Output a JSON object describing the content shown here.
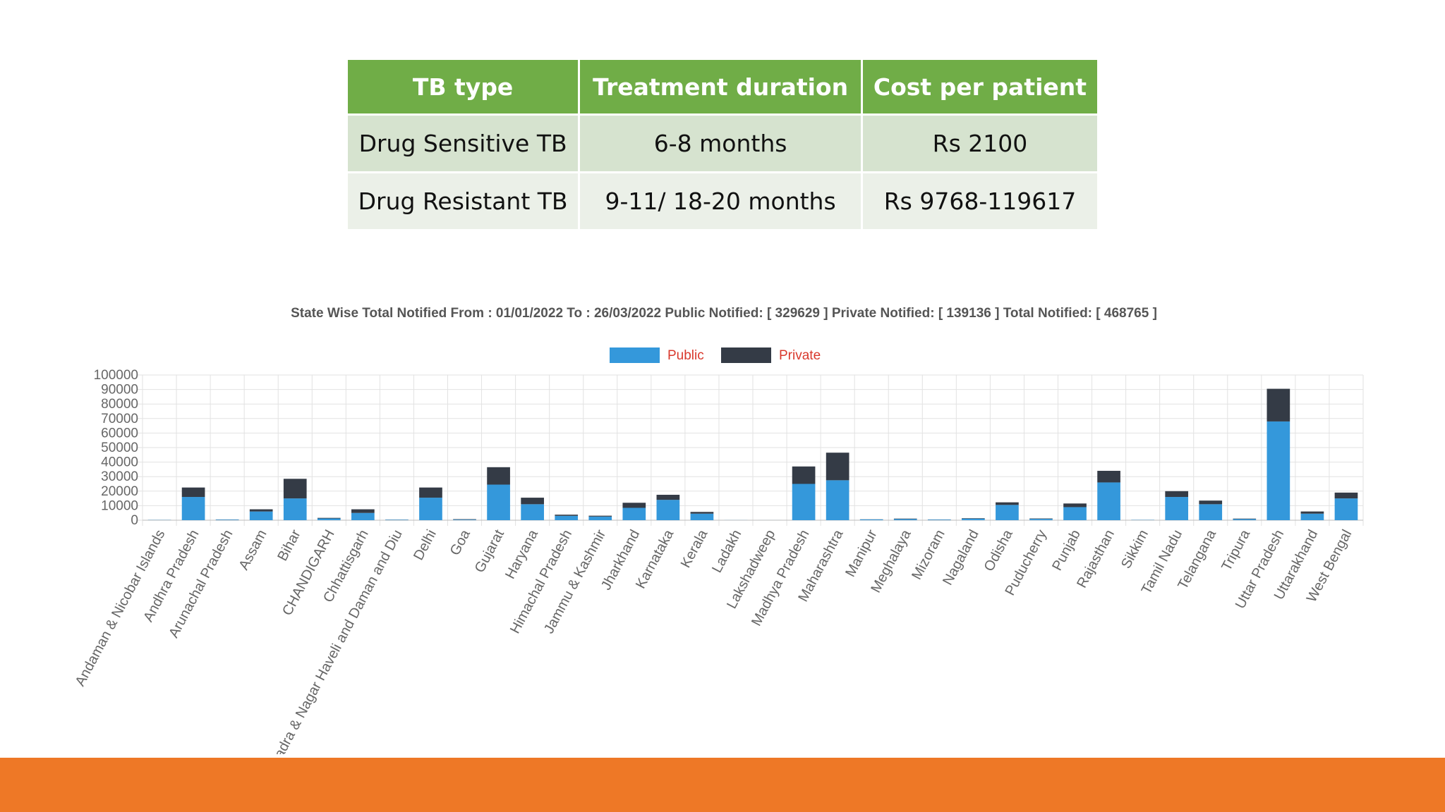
{
  "colors": {
    "table_header": "#70AD47",
    "row_odd": "#D6E3CF",
    "row_even": "#EBF0E8",
    "public": "#3498DB",
    "private": "#343B46",
    "legend_text": "#D9382C",
    "footer": "#EE7826",
    "axis_text": "#666666",
    "grid": "#E2E2E2"
  },
  "table": {
    "headers": [
      "TB type",
      "Treatment duration",
      "Cost per patient"
    ],
    "rows": [
      [
        "Drug Sensitive TB",
        "6-8 months",
        "Rs 2100"
      ],
      [
        "Drug Resistant TB",
        "9-11/ 18-20 months",
        "Rs 9768-119617"
      ]
    ]
  },
  "chart_data": {
    "type": "bar",
    "stacked": true,
    "title": "State Wise Total Notified From : 01/01/2022 To : 26/03/2022 Public Notified: [ 329629 ] Private Notified: [ 139136 ] Total Notified: [ 468765 ]",
    "legend": [
      "Public",
      "Private"
    ],
    "legend_position": "top-center",
    "ylim": [
      0,
      100000
    ],
    "yticks": [
      0,
      10000,
      20000,
      30000,
      40000,
      50000,
      60000,
      70000,
      80000,
      90000,
      100000
    ],
    "grid": true,
    "categories": [
      "Andaman & Nicobar Islands",
      "Andhra Pradesh",
      "Arunachal Pradesh",
      "Assam",
      "Bihar",
      "CHANDIGARH",
      "Chhattisgarh",
      "Dadra & Nagar Haveli and Daman and Diu",
      "Delhi",
      "Goa",
      "Gujarat",
      "Haryana",
      "Himachal Pradesh",
      "Jammu & Kashmir",
      "Jharkhand",
      "Karnataka",
      "Kerala",
      "Ladakh",
      "Lakshadweep",
      "Madhya Pradesh",
      "Maharashtra",
      "Manipur",
      "Meghalaya",
      "Mizoram",
      "Nagaland",
      "Odisha",
      "Puducherry",
      "Punjab",
      "Rajasthan",
      "Sikkim",
      "Tamil Nadu",
      "Telangana",
      "Tripura",
      "Uttar Pradesh",
      "Uttarakhand",
      "West Bengal"
    ],
    "series": [
      {
        "name": "Public",
        "values": [
          150,
          16000,
          400,
          6000,
          15000,
          1200,
          5000,
          300,
          15500,
          400,
          24500,
          11000,
          3000,
          2500,
          8500,
          14000,
          4500,
          50,
          20,
          25000,
          27500,
          500,
          800,
          400,
          1100,
          10500,
          900,
          9000,
          26000,
          200,
          16000,
          11000,
          800,
          68000,
          4500,
          15000
        ]
      },
      {
        "name": "Private",
        "values": [
          50,
          6500,
          100,
          1500,
          13500,
          400,
          2500,
          100,
          7000,
          300,
          12000,
          4500,
          800,
          600,
          3500,
          3500,
          1200,
          0,
          0,
          12000,
          19000,
          100,
          300,
          100,
          300,
          1800,
          300,
          2500,
          8000,
          50,
          4000,
          2500,
          300,
          22500,
          1500,
          4000
        ]
      }
    ]
  }
}
